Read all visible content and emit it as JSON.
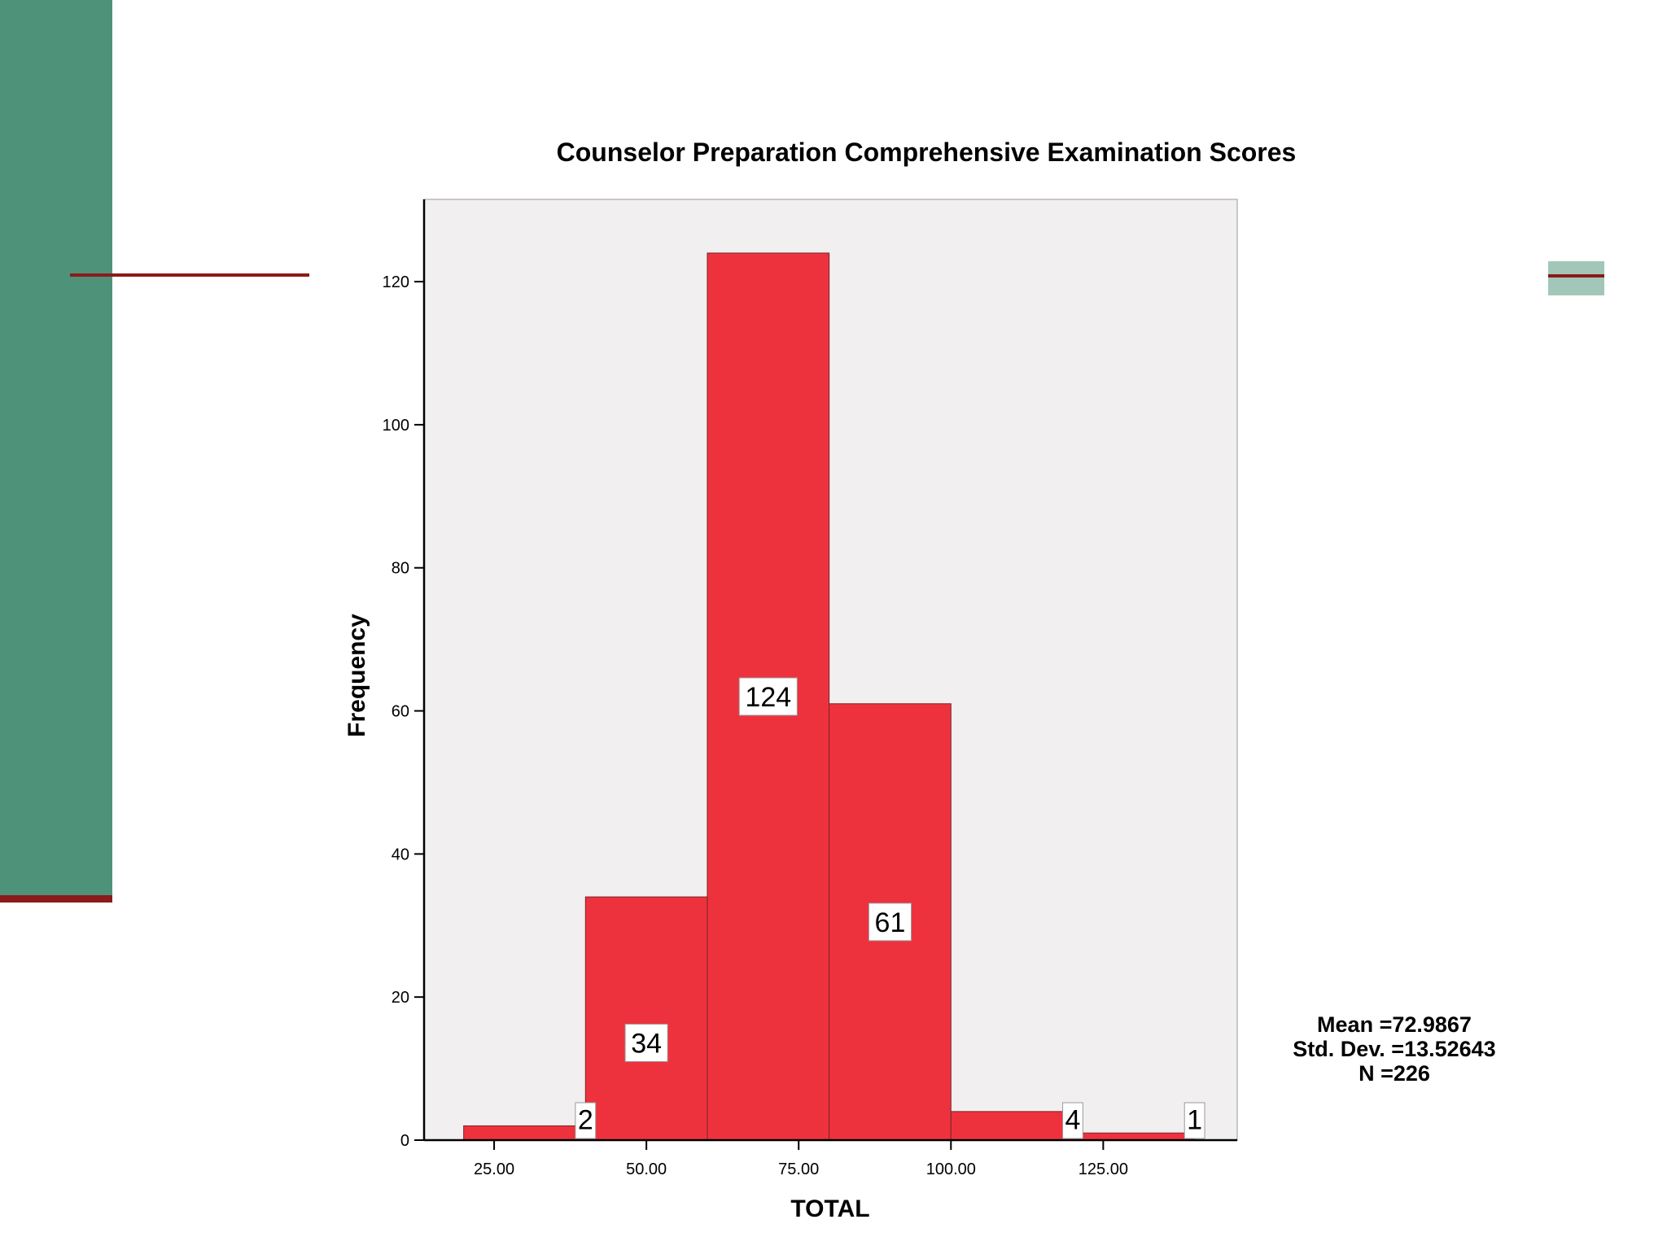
{
  "chart_data": {
    "type": "bar",
    "title": "Counselor Preparation Comprehensive Examination Scores",
    "xlabel": "TOTAL",
    "ylabel": "Frequency",
    "xlim": [
      13.5,
      147
    ],
    "ylim": [
      0,
      131.5
    ],
    "x_ticks": [
      {
        "value": 25,
        "label": "25.00"
      },
      {
        "value": 50,
        "label": "50.00"
      },
      {
        "value": 75,
        "label": "75.00"
      },
      {
        "value": 100,
        "label": "100.00"
      },
      {
        "value": 125,
        "label": "125.00"
      }
    ],
    "y_ticks": [
      0,
      20,
      40,
      60,
      80,
      100,
      120
    ],
    "bins": [
      {
        "start": 20,
        "end": 40,
        "value": 2,
        "label": "2"
      },
      {
        "start": 40,
        "end": 60,
        "value": 34,
        "label": "34"
      },
      {
        "start": 60,
        "end": 80,
        "value": 124,
        "label": "124"
      },
      {
        "start": 80,
        "end": 100,
        "value": 61,
        "label": "61"
      },
      {
        "start": 100,
        "end": 120,
        "value": 4,
        "label": "4"
      },
      {
        "start": 120,
        "end": 140,
        "value": 1,
        "label": "1"
      }
    ],
    "stats": {
      "mean": "Mean =72.9867",
      "std_dev": "Std. Dev. =13.52643",
      "n": "N =226"
    },
    "grid": false,
    "colors": {
      "bar": "#ee323d",
      "plot_background": "#f1eff0",
      "side_panel": "#4e927a",
      "accent_rule": "#8b1a1a"
    }
  }
}
